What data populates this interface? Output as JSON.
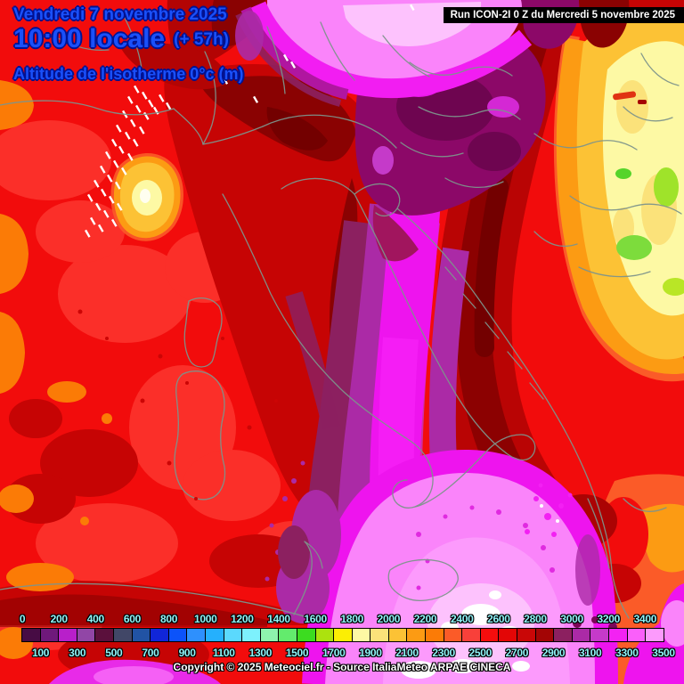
{
  "header": {
    "date": "Vendredi 7 novembre 2025",
    "time": "10:00 locale",
    "offset": "(+ 57h)",
    "subtitle": "Altitude de l'isotherme 0°c (m)"
  },
  "run_bar": {
    "text": "Run ICON-2I 0 Z du Mercredi 5 novembre 2025"
  },
  "footer": {
    "copyright": "Copyright © 2025 Meteociel.fr - Source ItaliaMeteo ARPAE CINECA"
  },
  "colors": {
    "header_text": "#1a50fa",
    "header_outline": "#001292",
    "scale_label_text": "#8ff4f8",
    "run_bar_bg": "#000000",
    "run_bar_text": "#ffffff",
    "copyright_text": "#ffffff",
    "map_border_lines": "#7d938b",
    "snow_hatch_marks": "#ffffff",
    "sea_level_red": "#f20c0c",
    "valley_magenta": "#ee14ee",
    "bottom_pink": "#fc9afc",
    "balkan_plateau_yellow": "#fdf9a4",
    "alps_low_patch_gold": "#fcc235"
  },
  "legend": {
    "unit": "m",
    "top_labels": [
      0,
      200,
      400,
      600,
      800,
      1000,
      1200,
      1400,
      1600,
      1800,
      2000,
      2200,
      2400,
      2600,
      2800,
      3000,
      3200,
      3400
    ],
    "bottom_labels": [
      100,
      300,
      500,
      700,
      900,
      1100,
      1300,
      1500,
      1700,
      1900,
      2100,
      2300,
      2500,
      2700,
      2900,
      3100,
      3300,
      3500
    ],
    "swatches": [
      {
        "value": 0,
        "color": "#470c44"
      },
      {
        "value": 100,
        "color": "#6f197b"
      },
      {
        "value": 200,
        "color": "#b81fca"
      },
      {
        "value": 300,
        "color": "#9146a6"
      },
      {
        "value": 400,
        "color": "#5b103c"
      },
      {
        "value": 500,
        "color": "#414767"
      },
      {
        "value": 600,
        "color": "#2153a4"
      },
      {
        "value": 700,
        "color": "#1126d9"
      },
      {
        "value": 800,
        "color": "#0c53fa"
      },
      {
        "value": 900,
        "color": "#2e90fd"
      },
      {
        "value": 1000,
        "color": "#25b0fd"
      },
      {
        "value": 1100,
        "color": "#5bd9fd"
      },
      {
        "value": 1200,
        "color": "#7df1fd"
      },
      {
        "value": 1300,
        "color": "#8ef3ad"
      },
      {
        "value": 1400,
        "color": "#63eb6d"
      },
      {
        "value": 1500,
        "color": "#3cdc20"
      },
      {
        "value": 1600,
        "color": "#ace20e"
      },
      {
        "value": 1700,
        "color": "#fbee04"
      },
      {
        "value": 1800,
        "color": "#fdf9a4"
      },
      {
        "value": 1900,
        "color": "#fbe27a"
      },
      {
        "value": 2000,
        "color": "#fcc235"
      },
      {
        "value": 2100,
        "color": "#fc9b13"
      },
      {
        "value": 2200,
        "color": "#fb7b06"
      },
      {
        "value": 2300,
        "color": "#fb5b28"
      },
      {
        "value": 2400,
        "color": "#f8403a"
      },
      {
        "value": 2500,
        "color": "#f60d0d"
      },
      {
        "value": 2600,
        "color": "#e30606"
      },
      {
        "value": 2700,
        "color": "#c90707"
      },
      {
        "value": 2800,
        "color": "#a30505"
      },
      {
        "value": 2900,
        "color": "#8c2060"
      },
      {
        "value": 3000,
        "color": "#ab2aa6"
      },
      {
        "value": 3100,
        "color": "#c53ac9"
      },
      {
        "value": 3200,
        "color": "#f322f3"
      },
      {
        "value": 3300,
        "color": "#fa5ffa"
      },
      {
        "value": 3400,
        "color": "#fc9afc"
      }
    ]
  }
}
